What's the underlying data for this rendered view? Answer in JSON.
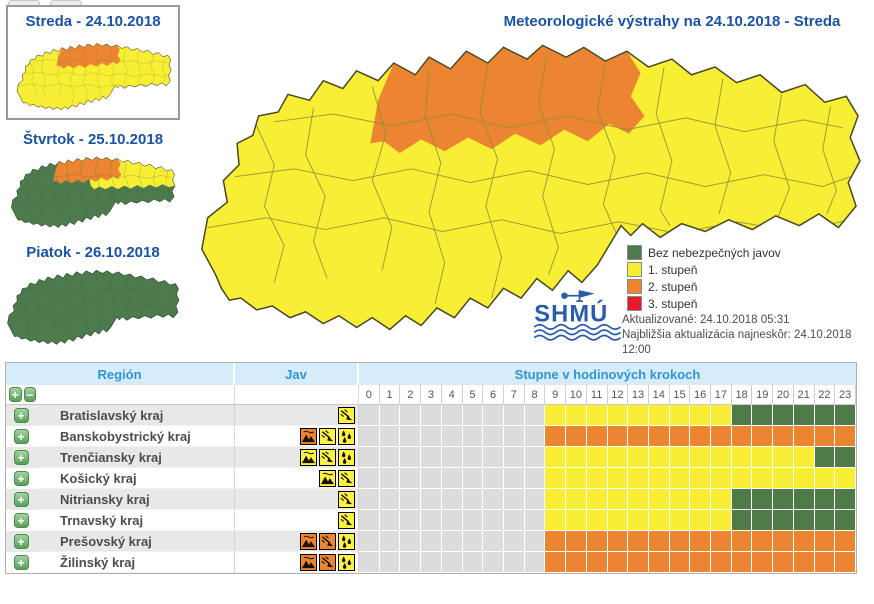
{
  "forecast_tabs": [
    {
      "label": "Streda - 24.10.2018"
    },
    {
      "label": "Štvrtok - 25.10.2018"
    },
    {
      "label": "Piatok - 26.10.2018"
    }
  ],
  "main_map": {
    "title": "Meteorologické výstrahy na 24.10.2018 - Streda"
  },
  "legend": [
    {
      "label": "Bez nebezpečných javov",
      "color": "#4e7b4e"
    },
    {
      "label": "1. stupeň",
      "color": "#f8ef35"
    },
    {
      "label": "2. stupeň",
      "color": "#ec8532"
    },
    {
      "label": "3. stupeň",
      "color": "#e8192d"
    }
  ],
  "status": {
    "updated": "Aktualizované: 24.10.2018 05:31",
    "next_update": "Najbližšia aktualizácia najneskôr: 24.10.2018 12:00"
  },
  "logo_text": "SHMÚ",
  "colors": {
    "level1_yellow": "#f8ef35",
    "level2_orange": "#ec8532",
    "level3_red": "#e8192d",
    "no_warning_green": "#4e7b4e",
    "empty_cell_gray": "#dcdcdc",
    "title_blue": "#1c52a2",
    "table_header_blue": "#2e96d4"
  },
  "table": {
    "header_region": "Región",
    "header_jav": "Jav",
    "header_steps": "Stupne v hodinových krokoch",
    "expand_all_label": "+",
    "collapse_all_label": "−",
    "row_expand_label": "+",
    "hours": [
      "0",
      "1",
      "2",
      "3",
      "4",
      "5",
      "6",
      "7",
      "8",
      "9",
      "10",
      "11",
      "12",
      "13",
      "14",
      "15",
      "16",
      "17",
      "18",
      "19",
      "20",
      "21",
      "22",
      "23"
    ],
    "rows": [
      {
        "region": "Bratislavský kraj",
        "icons": [
          "wind-yellow"
        ],
        "cells": "nnnnnnnnnyyyyyyyyygggggg"
      },
      {
        "region": "Banskobystrický kraj",
        "icons": [
          "mountains-orange",
          "wind-yellow",
          "rain-yellow"
        ],
        "cells": "nnnnnnnnnooooooooooooooo"
      },
      {
        "region": "Trenčiansky kraj",
        "icons": [
          "mountains-yellow",
          "wind-yellow",
          "rain-yellow"
        ],
        "cells": "nnnnnnnnnyyyyyyyyyyyyygg"
      },
      {
        "region": "Košický kraj",
        "icons": [
          "mountains-yellow",
          "wind-yellow"
        ],
        "cells": "nnnnnnnnnyyyyyyyyyyyyyyy"
      },
      {
        "region": "Nitriansky kraj",
        "icons": [
          "wind-yellow"
        ],
        "cells": "nnnnnnnnnyyyyyyyyygggggg"
      },
      {
        "region": "Trnavský kraj",
        "icons": [
          "wind-yellow"
        ],
        "cells": "nnnnnnnnnyyyyyyyyygggggg"
      },
      {
        "region": "Prešovský kraj",
        "icons": [
          "mountains-orange",
          "wind-orange",
          "rain-yellow"
        ],
        "cells": "nnnnnnnnnooooooooooooooo"
      },
      {
        "region": "Žilinský kraj",
        "icons": [
          "mountains-orange",
          "wind-orange",
          "rain-yellow"
        ],
        "cells": "nnnnnnnnnooooooooooooooo"
      }
    ]
  }
}
